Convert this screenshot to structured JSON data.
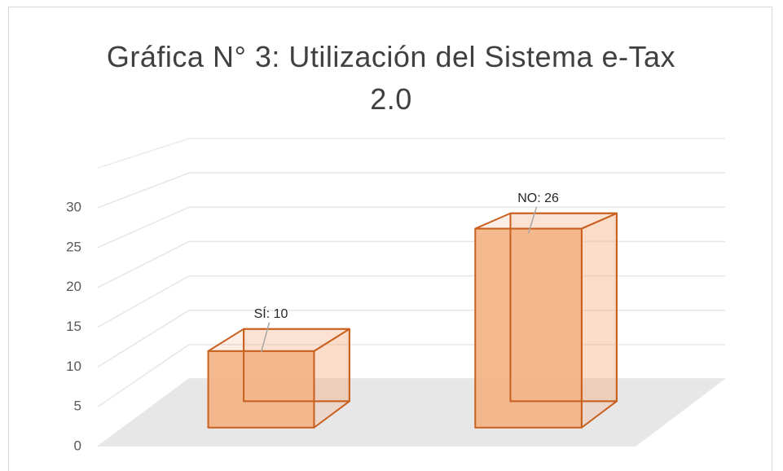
{
  "chart_data": {
    "type": "bar3d",
    "title": "Gráfica N° 3: Utilización del Sistema e-Tax 2.0",
    "values": [
      10,
      26
    ],
    "value_labels": [
      "SÍ: 10",
      "NO: 26"
    ],
    "color": "#f4b183",
    "edge_color": "#c8601f",
    "ylim": [
      0,
      35
    ],
    "yticks": [
      0,
      5,
      10,
      15,
      20,
      25,
      30
    ],
    "grid": true
  }
}
